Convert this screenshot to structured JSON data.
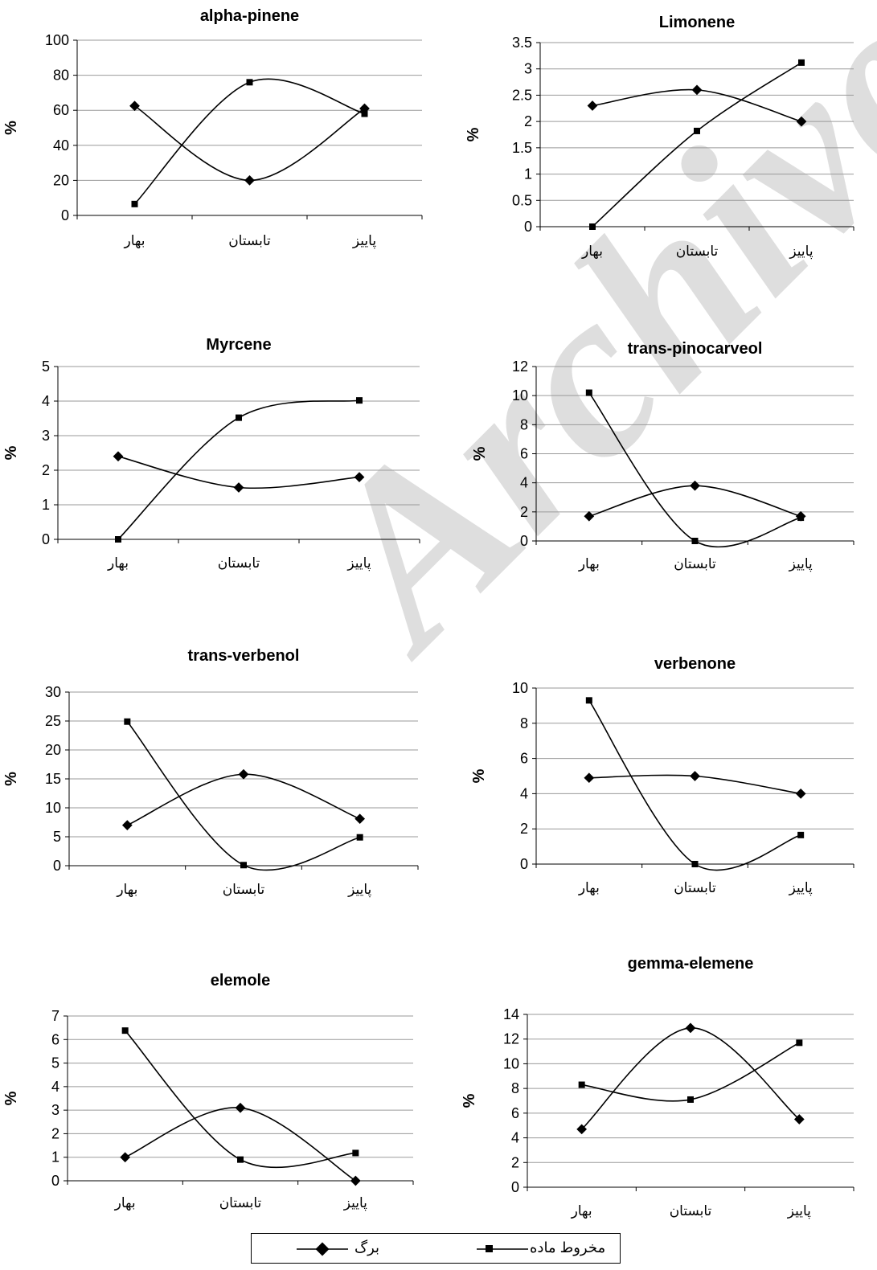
{
  "watermark": "Archive of SID",
  "legend": {
    "leaf_label": "برگ",
    "cone_label": "مخروط ماده"
  },
  "chart_data": [
    {
      "type": "line",
      "title": "alpha-pinene",
      "ylabel": "%",
      "categories": [
        "بهار",
        "تابستان",
        "پاییز"
      ],
      "ylim": [
        0,
        100
      ],
      "yticks": [
        "0",
        "20",
        "40",
        "60",
        "80",
        "100"
      ],
      "series": [
        {
          "marker": "diamond",
          "values": [
            62.5,
            20,
            61
          ]
        },
        {
          "marker": "square",
          "values": [
            6.5,
            76,
            58
          ]
        }
      ]
    },
    {
      "type": "line",
      "title": "Limonene",
      "ylabel": "%",
      "categories": [
        "بهار",
        "تابستان",
        "پاییز"
      ],
      "ylim": [
        0,
        3.5
      ],
      "yticks": [
        "0",
        "0.5",
        "1",
        "1.5",
        "2",
        "2.5",
        "3",
        "3.5"
      ],
      "series": [
        {
          "marker": "diamond",
          "values": [
            2.3,
            2.6,
            2.0
          ]
        },
        {
          "marker": "square",
          "values": [
            0,
            1.82,
            3.12
          ]
        }
      ]
    },
    {
      "type": "line",
      "title": "Myrcene",
      "ylabel": "%",
      "categories": [
        "بهار",
        "تابستان",
        "پاییز"
      ],
      "ylim": [
        0,
        5
      ],
      "yticks": [
        "0",
        "1",
        "2",
        "3",
        "4",
        "5"
      ],
      "series": [
        {
          "marker": "diamond",
          "values": [
            2.4,
            1.5,
            1.8
          ]
        },
        {
          "marker": "square",
          "values": [
            0,
            3.52,
            4.02
          ]
        }
      ]
    },
    {
      "type": "line",
      "title": "trans-pinocarveol",
      "ylabel": "%",
      "categories": [
        "بهار",
        "تابستان",
        "پاییز"
      ],
      "ylim": [
        0,
        12
      ],
      "yticks": [
        "0",
        "2",
        "4",
        "6",
        "8",
        "10",
        "12"
      ],
      "series": [
        {
          "marker": "diamond",
          "values": [
            1.7,
            3.8,
            1.7
          ]
        },
        {
          "marker": "square",
          "values": [
            10.2,
            0,
            1.6
          ]
        }
      ]
    },
    {
      "type": "line",
      "title": "trans-verbenol",
      "ylabel": "%",
      "categories": [
        "بهار",
        "تابستان",
        "پاییز"
      ],
      "ylim": [
        0,
        30
      ],
      "yticks": [
        "0",
        "5",
        "10",
        "15",
        "20",
        "25",
        "30"
      ],
      "series": [
        {
          "marker": "diamond",
          "values": [
            7,
            15.8,
            8.1
          ]
        },
        {
          "marker": "square",
          "values": [
            24.9,
            0.1,
            4.9
          ]
        }
      ]
    },
    {
      "type": "line",
      "title": "verbenone",
      "ylabel": "%",
      "categories": [
        "بهار",
        "تابستان",
        "پاییز"
      ],
      "ylim": [
        0,
        10
      ],
      "yticks": [
        "0",
        "2",
        "4",
        "6",
        "8",
        "10"
      ],
      "series": [
        {
          "marker": "diamond",
          "values": [
            4.9,
            5.0,
            4.0
          ]
        },
        {
          "marker": "square",
          "values": [
            9.3,
            0,
            1.65
          ]
        }
      ]
    },
    {
      "type": "line",
      "title": "elemole",
      "ylabel": "%",
      "categories": [
        "بهار",
        "تابستان",
        "پاییز"
      ],
      "ylim": [
        0,
        7
      ],
      "yticks": [
        "0",
        "1",
        "2",
        "3",
        "4",
        "5",
        "6",
        "7"
      ],
      "series": [
        {
          "marker": "diamond",
          "values": [
            1.0,
            3.1,
            0
          ]
        },
        {
          "marker": "square",
          "values": [
            6.38,
            0.9,
            1.18
          ]
        }
      ]
    },
    {
      "type": "line",
      "title": "gemma-elemene",
      "ylabel": "%",
      "categories": [
        "بهار",
        "تابستان",
        "پاییز"
      ],
      "ylim": [
        0,
        14
      ],
      "yticks": [
        "0",
        "2",
        "4",
        "6",
        "8",
        "10",
        "12",
        "14"
      ],
      "series": [
        {
          "marker": "diamond",
          "values": [
            4.7,
            12.9,
            5.5
          ]
        },
        {
          "marker": "square",
          "values": [
            8.3,
            7.1,
            11.7
          ]
        }
      ]
    }
  ]
}
